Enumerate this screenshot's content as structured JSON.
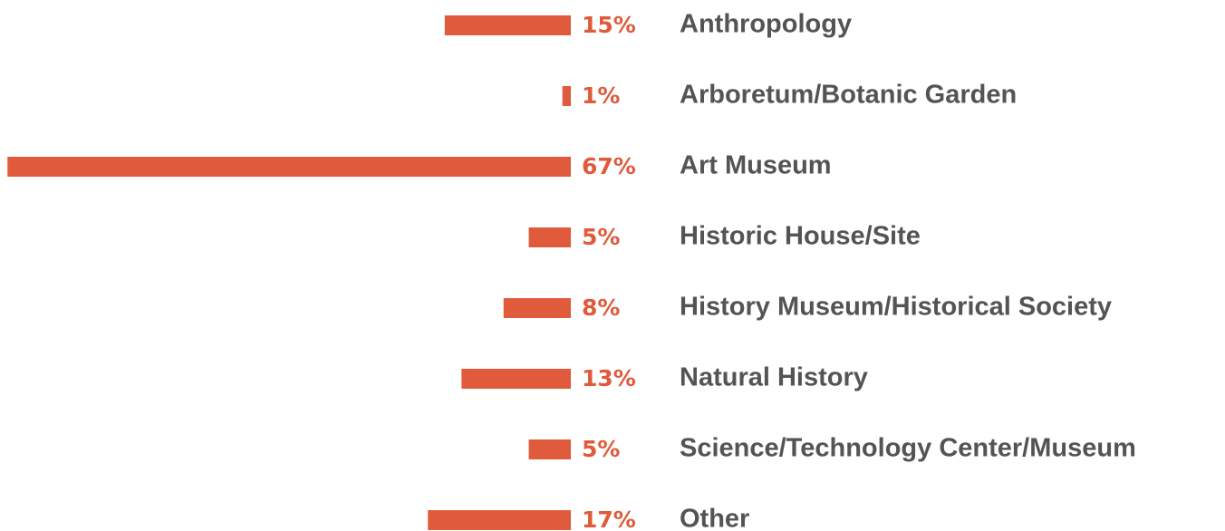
{
  "chart_data": {
    "type": "bar",
    "orientation": "horizontal",
    "categories": [
      "Anthropology",
      "Arboretum/Botanic Garden",
      "Art Museum",
      "Historic House/Site",
      "History Museum/Historical Society",
      "Natural History",
      "Science/Technology Center/Museum",
      "Other"
    ],
    "values": [
      15,
      1,
      67,
      5,
      8,
      13,
      5,
      17
    ],
    "value_labels": [
      "15%",
      "1%",
      "67%",
      "5%",
      "8%",
      "13%",
      "5%",
      "17%"
    ],
    "color": "#e05a3c"
  }
}
